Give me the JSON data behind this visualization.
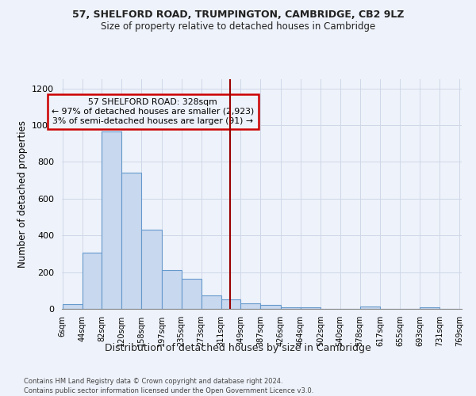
{
  "title1": "57, SHELFORD ROAD, TRUMPINGTON, CAMBRIDGE, CB2 9LZ",
  "title2": "Size of property relative to detached houses in Cambridge",
  "xlabel": "Distribution of detached houses by size in Cambridge",
  "ylabel": "Number of detached properties",
  "bin_edges": [
    6,
    44,
    82,
    120,
    158,
    197,
    235,
    273,
    311,
    349,
    387,
    426,
    464,
    502,
    540,
    578,
    617,
    655,
    693,
    731,
    769
  ],
  "bar_heights": [
    25,
    305,
    965,
    740,
    430,
    210,
    165,
    75,
    50,
    30,
    20,
    10,
    10,
    0,
    0,
    15,
    0,
    0,
    10,
    0
  ],
  "bar_color": "#c8d8ee",
  "bar_edge_color": "#6699cc",
  "vline_x": 328,
  "vline_color": "#990000",
  "annotation_title": "57 SHELFORD ROAD: 328sqm",
  "annotation_line1": "← 97% of detached houses are smaller (2,923)",
  "annotation_line2": "3% of semi-detached houses are larger (91) →",
  "annotation_box_edgecolor": "#cc0000",
  "footer1": "Contains HM Land Registry data © Crown copyright and database right 2024.",
  "footer2": "Contains public sector information licensed under the Open Government Licence v3.0.",
  "ylim": [
    0,
    1250
  ],
  "yticks": [
    0,
    200,
    400,
    600,
    800,
    1000,
    1200
  ],
  "background_color": "#eef2fa",
  "grid_color": "#d0d8e8"
}
